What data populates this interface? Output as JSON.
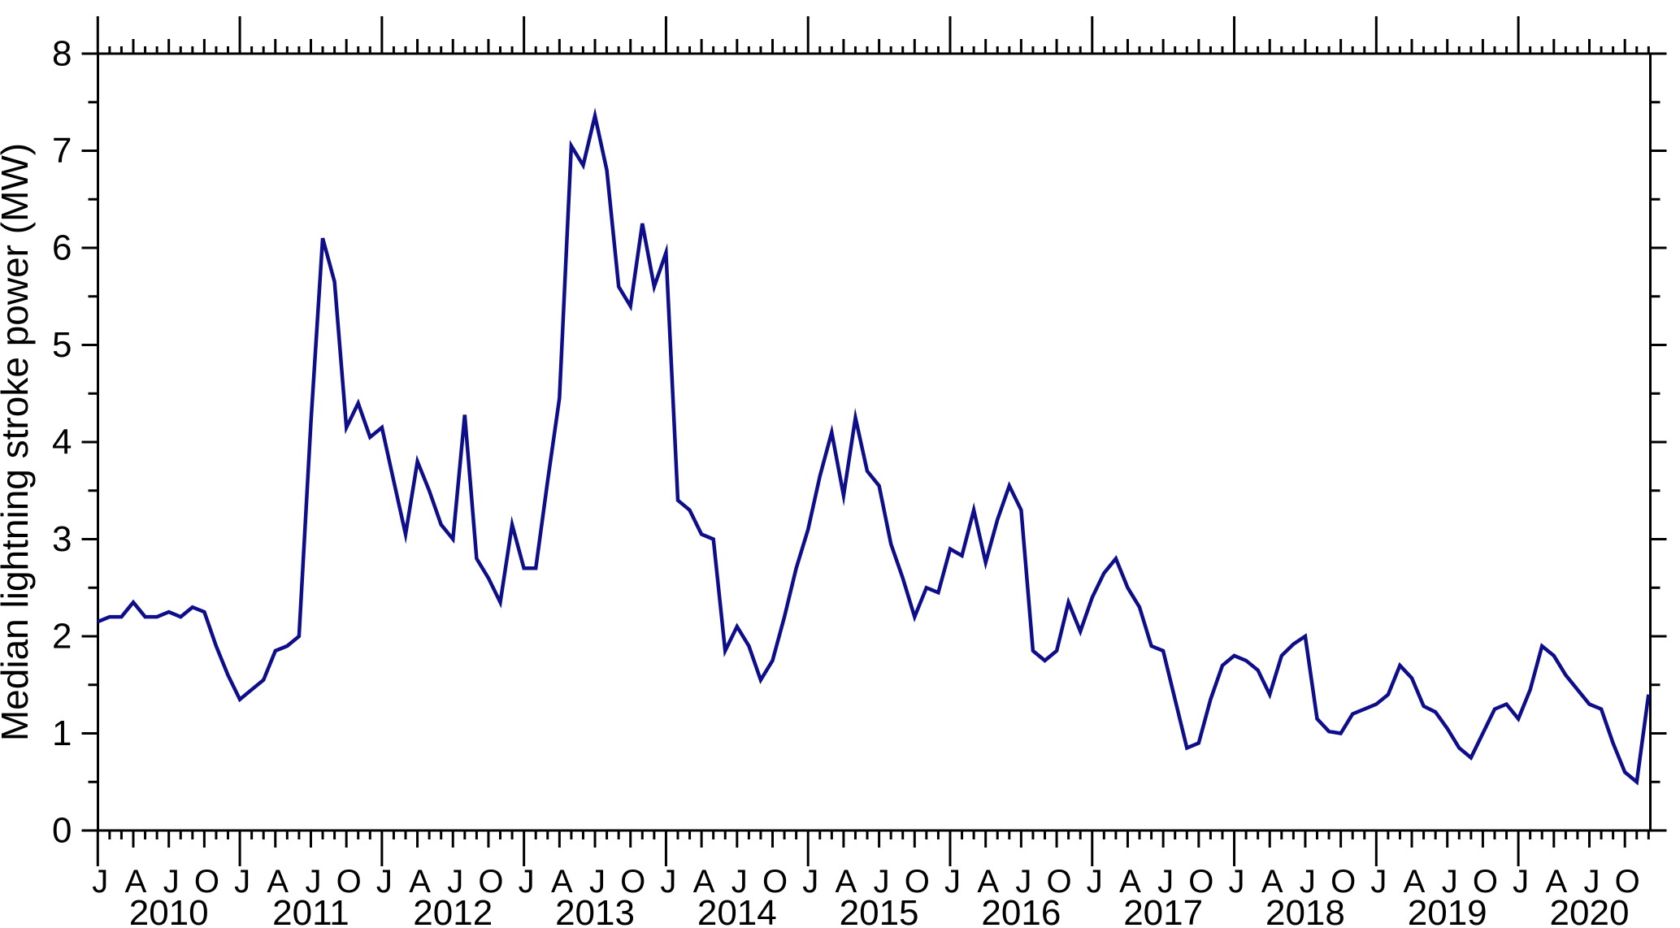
{
  "colors": {
    "line": "#0e0e8a",
    "axis": "#000000",
    "background": "#ffffff"
  },
  "chart_data": {
    "type": "line",
    "title": "",
    "xlabel": "",
    "ylabel": "Median lightning stroke power (MW)",
    "ylim": [
      0,
      8
    ],
    "y_major_ticks": [
      0,
      1,
      2,
      3,
      4,
      5,
      6,
      7,
      8
    ],
    "y_minor_step": 0.5,
    "grid": false,
    "legend": false,
    "x_start": "2010-01",
    "x_end": "2020-12",
    "years": [
      2010,
      2011,
      2012,
      2013,
      2014,
      2015,
      2016,
      2017,
      2018,
      2019,
      2020
    ],
    "month_tick_labels": [
      "J",
      "A",
      "J",
      "O"
    ],
    "series": [
      {
        "name": "Median lightning stroke power (MW)",
        "values": [
          2.15,
          2.2,
          2.2,
          2.35,
          2.2,
          2.2,
          2.25,
          2.2,
          2.3,
          2.25,
          1.9,
          1.6,
          1.35,
          1.45,
          1.55,
          1.85,
          1.9,
          2.0,
          4.2,
          6.1,
          5.65,
          4.15,
          4.4,
          4.05,
          4.15,
          3.6,
          3.05,
          3.8,
          3.5,
          3.15,
          3.0,
          4.28,
          2.8,
          2.6,
          2.35,
          3.15,
          2.7,
          2.7,
          3.6,
          4.45,
          7.05,
          6.85,
          7.36,
          6.8,
          5.6,
          5.4,
          6.25,
          5.6,
          5.95,
          3.4,
          3.3,
          3.05,
          3.0,
          1.85,
          2.1,
          1.9,
          1.55,
          1.75,
          2.2,
          2.7,
          3.1,
          3.65,
          4.1,
          3.45,
          4.25,
          3.7,
          3.55,
          2.95,
          2.6,
          2.2,
          2.5,
          2.45,
          2.9,
          2.83,
          3.3,
          2.76,
          3.2,
          3.55,
          3.3,
          1.85,
          1.75,
          1.85,
          2.35,
          2.05,
          2.4,
          2.65,
          2.8,
          2.5,
          2.3,
          1.9,
          1.85,
          1.35,
          0.85,
          0.9,
          1.35,
          1.7,
          1.8,
          1.75,
          1.65,
          1.4,
          1.8,
          1.92,
          2.0,
          1.15,
          1.02,
          1.0,
          1.2,
          1.25,
          1.3,
          1.4,
          1.7,
          1.57,
          1.28,
          1.22,
          1.05,
          0.85,
          0.75,
          1.0,
          1.25,
          1.3,
          1.15,
          1.45,
          1.9,
          1.8,
          1.6,
          1.45,
          1.3,
          1.25,
          0.9,
          0.6,
          0.5,
          1.4
        ]
      }
    ]
  }
}
